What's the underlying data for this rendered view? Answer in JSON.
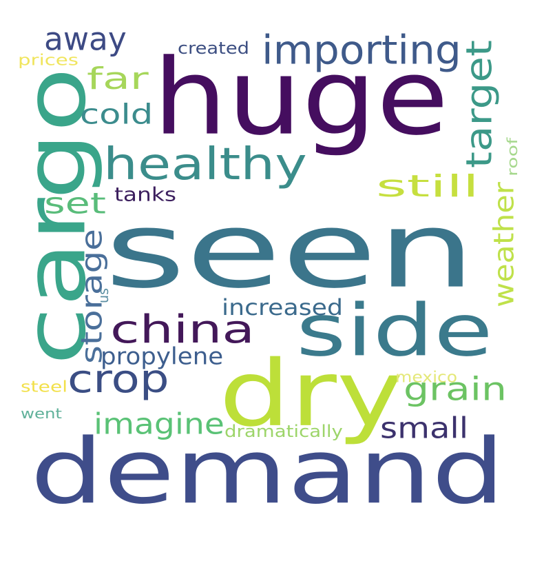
{
  "words": [
    {
      "id": "seen",
      "text": "seen",
      "color": "#3b758b"
    },
    {
      "id": "huge",
      "text": "huge",
      "color": "#450e5f"
    },
    {
      "id": "demand",
      "text": "demand",
      "color": "#3f4d8a"
    },
    {
      "id": "dry",
      "text": "dry",
      "color": "#bddf39"
    },
    {
      "id": "cargo",
      "text": "cargo",
      "color": "#3aa58a"
    },
    {
      "id": "side",
      "text": "side",
      "color": "#3b7a8c"
    },
    {
      "id": "healthy",
      "text": "healthy",
      "color": "#3b8d8b"
    },
    {
      "id": "china",
      "text": "china",
      "color": "#431859"
    },
    {
      "id": "importing",
      "text": "importing",
      "color": "#3f5a8a"
    },
    {
      "id": "target",
      "text": "target",
      "color": "#3c9988"
    },
    {
      "id": "crop",
      "text": "crop",
      "color": "#3b4e84"
    },
    {
      "id": "grain",
      "text": "grain",
      "color": "#6cc363"
    },
    {
      "id": "still",
      "text": "still",
      "color": "#c6df3f"
    },
    {
      "id": "imagine",
      "text": "imagine",
      "color": "#5ac276"
    },
    {
      "id": "weather",
      "text": "weather",
      "color": "#bfe14a"
    },
    {
      "id": "away",
      "text": "away",
      "color": "#3d4a84"
    },
    {
      "id": "small",
      "text": "small",
      "color": "#3c326d"
    },
    {
      "id": "storage",
      "text": "storage",
      "color": "#4a6f9a"
    },
    {
      "id": "far",
      "text": "far",
      "color": "#a6d65a"
    },
    {
      "id": "cold",
      "text": "cold",
      "color": "#3c8c8d"
    },
    {
      "id": "set",
      "text": "set",
      "color": "#59bc7a"
    },
    {
      "id": "propylene",
      "text": "propylene",
      "color": "#3d5e8e"
    },
    {
      "id": "increased",
      "text": "increased",
      "color": "#3b6a8c"
    },
    {
      "id": "tanks",
      "text": "tanks",
      "color": "#3c1f5e"
    },
    {
      "id": "dramatically",
      "text": "dramatically",
      "color": "#9dd56a"
    },
    {
      "id": "created",
      "text": "created",
      "color": "#3d4f82"
    },
    {
      "id": "mexico",
      "text": "mexico",
      "color": "#e4e878"
    },
    {
      "id": "steel",
      "text": "steel",
      "color": "#f2e04a"
    },
    {
      "id": "prices",
      "text": "prices",
      "color": "#f0e55d"
    },
    {
      "id": "went",
      "text": "went",
      "color": "#60b19a"
    },
    {
      "id": "roof",
      "text": "roof",
      "color": "#a6d88d"
    },
    {
      "id": "us",
      "text": "us",
      "color": "#5b8ea2"
    }
  ]
}
